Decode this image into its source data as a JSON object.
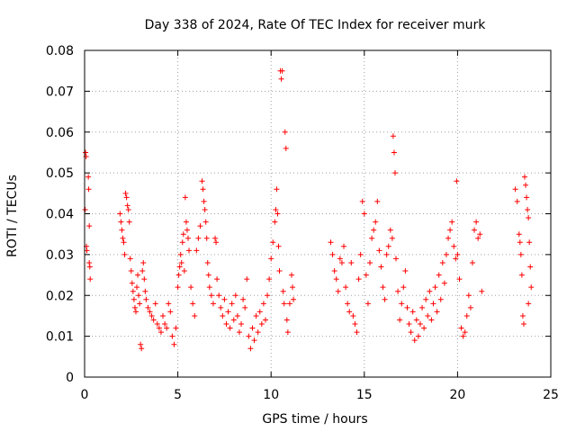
{
  "chart_data": {
    "type": "scatter",
    "title": "Day 338 of 2024, Rate Of TEC Index for receiver murk",
    "xlabel": "GPS time / hours",
    "ylabel": "ROTI / TECUs",
    "xlim": [
      0,
      25
    ],
    "ylim": [
      0,
      0.08
    ],
    "x_ticks": [
      "0",
      "5",
      "10",
      "15",
      "20",
      "25"
    ],
    "y_ticks": [
      "0",
      "0.01",
      "0.02",
      "0.03",
      "0.04",
      "0.05",
      "0.06",
      "0.07",
      "0.08"
    ],
    "grid": true,
    "marker": "plus",
    "color": "#ff0000",
    "series": [
      {
        "points": [
          [
            0.05,
            0.055
          ],
          [
            0.08,
            0.054
          ],
          [
            0.03,
            0.041
          ],
          [
            0.1,
            0.032
          ],
          [
            0.12,
            0.031
          ],
          [
            0.2,
            0.049
          ],
          [
            0.22,
            0.046
          ],
          [
            0.25,
            0.037
          ],
          [
            0.25,
            0.028
          ],
          [
            0.28,
            0.027
          ],
          [
            0.3,
            0.024
          ],
          [
            1.9,
            0.04
          ],
          [
            1.95,
            0.038
          ],
          [
            2.0,
            0.036
          ],
          [
            2.05,
            0.034
          ],
          [
            2.1,
            0.033
          ],
          [
            2.15,
            0.03
          ],
          [
            2.2,
            0.045
          ],
          [
            2.25,
            0.044
          ],
          [
            2.3,
            0.042
          ],
          [
            2.35,
            0.041
          ],
          [
            2.4,
            0.038
          ],
          [
            2.45,
            0.029
          ],
          [
            2.5,
            0.026
          ],
          [
            2.55,
            0.023
          ],
          [
            2.6,
            0.021
          ],
          [
            2.65,
            0.019
          ],
          [
            2.7,
            0.017
          ],
          [
            2.75,
            0.016
          ],
          [
            2.8,
            0.022
          ],
          [
            2.85,
            0.025
          ],
          [
            2.9,
            0.02
          ],
          [
            2.95,
            0.018
          ],
          [
            3.0,
            0.008
          ],
          [
            3.05,
            0.007
          ],
          [
            3.1,
            0.026
          ],
          [
            3.15,
            0.028
          ],
          [
            3.2,
            0.024
          ],
          [
            3.25,
            0.021
          ],
          [
            3.3,
            0.019
          ],
          [
            3.4,
            0.017
          ],
          [
            3.5,
            0.016
          ],
          [
            3.6,
            0.015
          ],
          [
            3.7,
            0.014
          ],
          [
            3.8,
            0.018
          ],
          [
            3.9,
            0.013
          ],
          [
            4.0,
            0.012
          ],
          [
            4.1,
            0.011
          ],
          [
            4.2,
            0.015
          ],
          [
            4.3,
            0.013
          ],
          [
            4.4,
            0.012
          ],
          [
            4.5,
            0.018
          ],
          [
            4.6,
            0.016
          ],
          [
            4.7,
            0.01
          ],
          [
            4.8,
            0.008
          ],
          [
            4.9,
            0.012
          ],
          [
            5.0,
            0.022
          ],
          [
            5.05,
            0.025
          ],
          [
            5.1,
            0.027
          ],
          [
            5.15,
            0.03
          ],
          [
            5.2,
            0.028
          ],
          [
            5.25,
            0.033
          ],
          [
            5.3,
            0.035
          ],
          [
            5.35,
            0.026
          ],
          [
            5.4,
            0.044
          ],
          [
            5.45,
            0.038
          ],
          [
            5.5,
            0.036
          ],
          [
            5.55,
            0.034
          ],
          [
            5.6,
            0.031
          ],
          [
            5.7,
            0.022
          ],
          [
            5.8,
            0.018
          ],
          [
            5.9,
            0.015
          ],
          [
            6.0,
            0.031
          ],
          [
            6.1,
            0.034
          ],
          [
            6.2,
            0.037
          ],
          [
            6.3,
            0.048
          ],
          [
            6.35,
            0.046
          ],
          [
            6.4,
            0.043
          ],
          [
            6.45,
            0.041
          ],
          [
            6.5,
            0.038
          ],
          [
            6.55,
            0.034
          ],
          [
            6.6,
            0.028
          ],
          [
            6.65,
            0.025
          ],
          [
            6.7,
            0.022
          ],
          [
            6.8,
            0.02
          ],
          [
            6.9,
            0.018
          ],
          [
            7.0,
            0.034
          ],
          [
            7.05,
            0.033
          ],
          [
            7.1,
            0.024
          ],
          [
            7.2,
            0.02
          ],
          [
            7.3,
            0.017
          ],
          [
            7.4,
            0.015
          ],
          [
            7.5,
            0.019
          ],
          [
            7.6,
            0.013
          ],
          [
            7.7,
            0.016
          ],
          [
            7.8,
            0.012
          ],
          [
            7.9,
            0.018
          ],
          [
            8.0,
            0.014
          ],
          [
            8.1,
            0.02
          ],
          [
            8.2,
            0.015
          ],
          [
            8.3,
            0.011
          ],
          [
            8.4,
            0.013
          ],
          [
            8.5,
            0.019
          ],
          [
            8.6,
            0.017
          ],
          [
            8.7,
            0.024
          ],
          [
            8.8,
            0.01
          ],
          [
            8.9,
            0.007
          ],
          [
            9.0,
            0.012
          ],
          [
            9.1,
            0.009
          ],
          [
            9.2,
            0.015
          ],
          [
            9.3,
            0.011
          ],
          [
            9.4,
            0.016
          ],
          [
            9.5,
            0.013
          ],
          [
            9.6,
            0.018
          ],
          [
            9.7,
            0.014
          ],
          [
            9.8,
            0.02
          ],
          [
            9.9,
            0.024
          ],
          [
            10.0,
            0.029
          ],
          [
            10.1,
            0.033
          ],
          [
            10.2,
            0.038
          ],
          [
            10.25,
            0.041
          ],
          [
            10.3,
            0.046
          ],
          [
            10.35,
            0.04
          ],
          [
            10.4,
            0.032
          ],
          [
            10.45,
            0.026
          ],
          [
            10.5,
            0.075
          ],
          [
            10.55,
            0.073
          ],
          [
            10.6,
            0.075
          ],
          [
            10.65,
            0.021
          ],
          [
            10.7,
            0.018
          ],
          [
            10.75,
            0.06
          ],
          [
            10.8,
            0.056
          ],
          [
            10.85,
            0.014
          ],
          [
            10.9,
            0.011
          ],
          [
            11.0,
            0.018
          ],
          [
            11.1,
            0.025
          ],
          [
            11.15,
            0.022
          ],
          [
            11.2,
            0.019
          ],
          [
            13.2,
            0.033
          ],
          [
            13.3,
            0.03
          ],
          [
            13.4,
            0.026
          ],
          [
            13.5,
            0.024
          ],
          [
            13.6,
            0.021
          ],
          [
            13.7,
            0.029
          ],
          [
            13.8,
            0.028
          ],
          [
            13.9,
            0.032
          ],
          [
            14.0,
            0.022
          ],
          [
            14.1,
            0.018
          ],
          [
            14.2,
            0.016
          ],
          [
            14.3,
            0.028
          ],
          [
            14.4,
            0.015
          ],
          [
            14.5,
            0.013
          ],
          [
            14.6,
            0.011
          ],
          [
            14.7,
            0.024
          ],
          [
            14.8,
            0.03
          ],
          [
            14.9,
            0.043
          ],
          [
            15.0,
            0.04
          ],
          [
            15.1,
            0.025
          ],
          [
            15.2,
            0.018
          ],
          [
            15.3,
            0.028
          ],
          [
            15.4,
            0.034
          ],
          [
            15.5,
            0.036
          ],
          [
            15.6,
            0.038
          ],
          [
            15.7,
            0.043
          ],
          [
            15.8,
            0.031
          ],
          [
            15.9,
            0.027
          ],
          [
            16.0,
            0.022
          ],
          [
            16.1,
            0.019
          ],
          [
            16.2,
            0.03
          ],
          [
            16.3,
            0.032
          ],
          [
            16.4,
            0.036
          ],
          [
            16.5,
            0.034
          ],
          [
            16.55,
            0.059
          ],
          [
            16.6,
            0.055
          ],
          [
            16.65,
            0.05
          ],
          [
            16.7,
            0.029
          ],
          [
            16.8,
            0.021
          ],
          [
            16.9,
            0.014
          ],
          [
            17.0,
            0.018
          ],
          [
            17.1,
            0.022
          ],
          [
            17.2,
            0.026
          ],
          [
            17.3,
            0.017
          ],
          [
            17.4,
            0.013
          ],
          [
            17.5,
            0.011
          ],
          [
            17.6,
            0.016
          ],
          [
            17.7,
            0.009
          ],
          [
            17.8,
            0.014
          ],
          [
            17.9,
            0.01
          ],
          [
            18.0,
            0.013
          ],
          [
            18.1,
            0.017
          ],
          [
            18.2,
            0.012
          ],
          [
            18.3,
            0.019
          ],
          [
            18.4,
            0.015
          ],
          [
            18.5,
            0.021
          ],
          [
            18.6,
            0.014
          ],
          [
            18.7,
            0.018
          ],
          [
            18.8,
            0.022
          ],
          [
            18.9,
            0.016
          ],
          [
            19.0,
            0.025
          ],
          [
            19.1,
            0.019
          ],
          [
            19.2,
            0.028
          ],
          [
            19.3,
            0.023
          ],
          [
            19.4,
            0.03
          ],
          [
            19.5,
            0.034
          ],
          [
            19.6,
            0.036
          ],
          [
            19.7,
            0.038
          ],
          [
            19.8,
            0.032
          ],
          [
            19.9,
            0.029
          ],
          [
            19.95,
            0.048
          ],
          [
            20.0,
            0.03
          ],
          [
            20.1,
            0.024
          ],
          [
            20.2,
            0.012
          ],
          [
            20.3,
            0.01
          ],
          [
            20.4,
            0.011
          ],
          [
            20.5,
            0.015
          ],
          [
            20.6,
            0.02
          ],
          [
            20.7,
            0.017
          ],
          [
            20.8,
            0.028
          ],
          [
            20.9,
            0.036
          ],
          [
            21.0,
            0.038
          ],
          [
            21.1,
            0.034
          ],
          [
            21.2,
            0.035
          ],
          [
            21.3,
            0.021
          ],
          [
            23.1,
            0.046
          ],
          [
            23.2,
            0.043
          ],
          [
            23.3,
            0.035
          ],
          [
            23.35,
            0.033
          ],
          [
            23.4,
            0.03
          ],
          [
            23.45,
            0.025
          ],
          [
            23.5,
            0.015
          ],
          [
            23.55,
            0.013
          ],
          [
            23.6,
            0.049
          ],
          [
            23.65,
            0.047
          ],
          [
            23.7,
            0.044
          ],
          [
            23.75,
            0.041
          ],
          [
            23.8,
            0.039
          ],
          [
            23.85,
            0.033
          ],
          [
            23.9,
            0.027
          ],
          [
            23.95,
            0.022
          ],
          [
            23.8,
            0.018
          ]
        ]
      }
    ]
  }
}
